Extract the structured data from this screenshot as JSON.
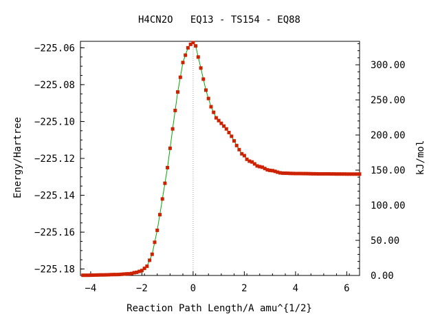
{
  "chart_data": {
    "type": "scatter",
    "title": "H4CN2O   EQ13 - TS154 - EQ88",
    "xlabel": "Reaction Path Length/A amu^{1/2}",
    "ylabel": "Energy/Hartree",
    "y2label": "kJ/mol",
    "xlim": [
      -4.4,
      6.5
    ],
    "ylim": [
      -225.1835,
      -225.0565
    ],
    "y2lim": [
      0,
      333.4
    ],
    "x_ticks": [
      -4,
      -2,
      0,
      2,
      4,
      6
    ],
    "x_tick_labels": [
      "−4",
      "−2",
      "0",
      "2",
      "4",
      "6"
    ],
    "y_ticks": [
      -225.06,
      -225.08,
      -225.1,
      -225.12,
      -225.14,
      -225.16,
      -225.18
    ],
    "y_tick_labels": [
      "−225.06",
      "−225.08",
      "−225.10",
      "−225.12",
      "−225.14",
      "−225.16",
      "−225.18"
    ],
    "y2_ticks": [
      0,
      50,
      100,
      150,
      200,
      250,
      300
    ],
    "y2_tick_labels": [
      "0.00",
      "50.00",
      "100.00",
      "150.00",
      "200.00",
      "250.00",
      "300.00"
    ],
    "grid": false,
    "legend": "none",
    "ts_marker_x": 0,
    "series": [
      {
        "marker_color": "#cc2200",
        "line_color": "#00aa00",
        "x": [
          -4.3,
          -3.5,
          -3.0,
          -2.5,
          -2.2,
          -2.0,
          -1.8,
          -1.6,
          -1.4,
          -1.2,
          -1.0,
          -0.8,
          -0.6,
          -0.4,
          -0.2,
          -0.05,
          0.0,
          0.1,
          0.3,
          0.5,
          0.7,
          0.9,
          1.1,
          1.3,
          1.5,
          1.7,
          1.9,
          2.2,
          2.6,
          3.0,
          3.5,
          4.0,
          5.0,
          6.0,
          6.5
        ],
        "y": [
          -225.1834,
          -225.1832,
          -225.183,
          -225.1826,
          -225.1818,
          -225.1808,
          -225.1785,
          -225.172,
          -225.159,
          -225.142,
          -225.125,
          -225.104,
          -225.084,
          -225.068,
          -225.06,
          -225.0575,
          -225.0572,
          -225.059,
          -225.071,
          -225.083,
          -225.092,
          -225.098,
          -225.101,
          -225.104,
          -225.108,
          -225.113,
          -225.1175,
          -225.1215,
          -225.1245,
          -225.1265,
          -225.128,
          -225.1282,
          -225.1284,
          -225.1285,
          -225.1285
        ]
      }
    ]
  }
}
